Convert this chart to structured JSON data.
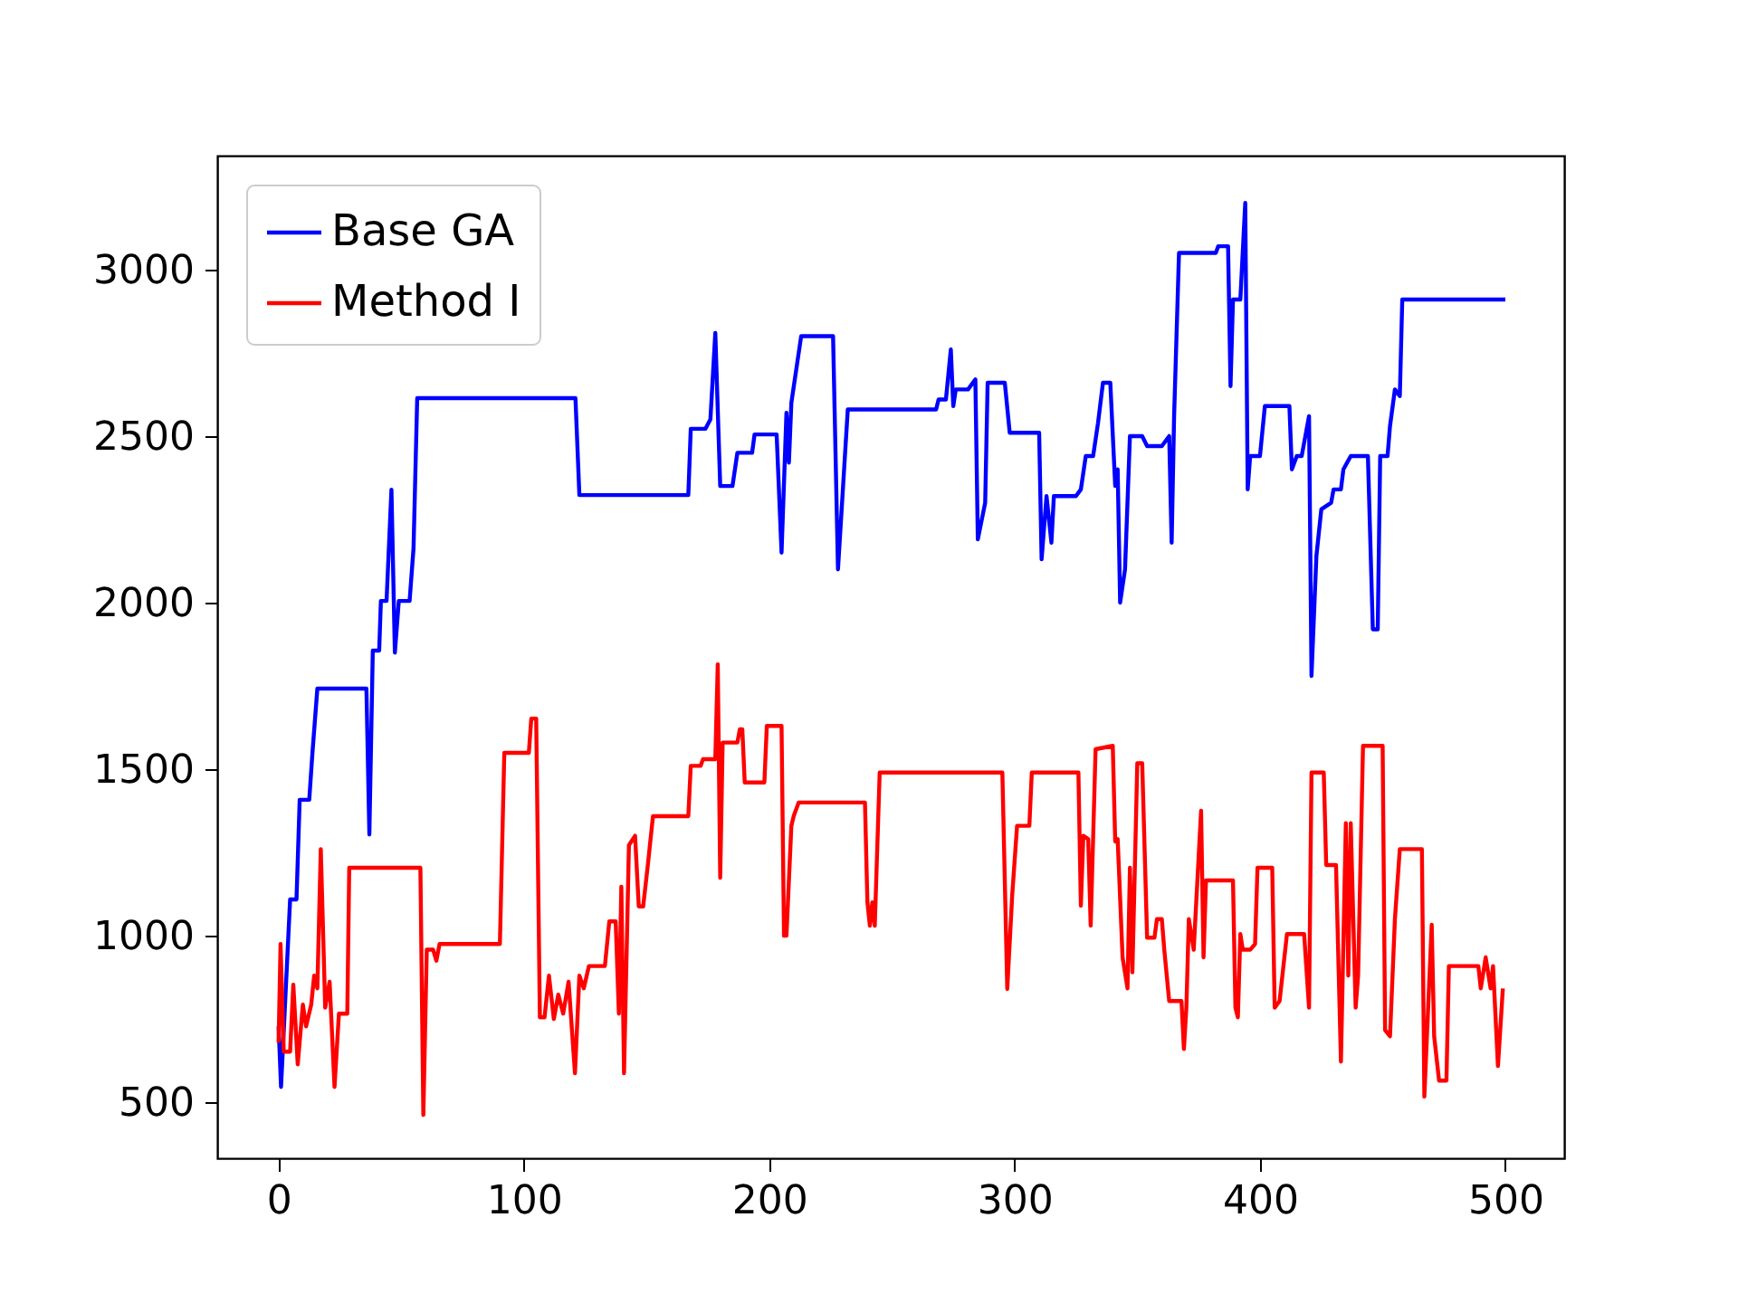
{
  "chart_data": {
    "type": "line",
    "xlim": [
      -25,
      524
    ],
    "ylim": [
      332,
      3342
    ],
    "xticks": [
      0,
      100,
      200,
      300,
      400,
      500
    ],
    "yticks": [
      500,
      1000,
      1500,
      2000,
      2500,
      3000
    ],
    "grid": false,
    "legend": "top left",
    "marker": "none",
    "line_style": "solid",
    "series": [
      {
        "name": "Base GA",
        "color": "#0000ff",
        "x": [
          0,
          1,
          4.7,
          7.3,
          8.6,
          12.5,
          13.8,
          15.8,
          35.8,
          37,
          38.4,
          41,
          41.7,
          44,
          46,
          47.4,
          49,
          53.4,
          55,
          56.5,
          121,
          122.6,
          167,
          168,
          174,
          176,
          178,
          180,
          185,
          187,
          193,
          194,
          203,
          205,
          207,
          208,
          209,
          213,
          226,
          228,
          230,
          232,
          268,
          269,
          272,
          274,
          275,
          276,
          281,
          284,
          285,
          288,
          289,
          296,
          298,
          310,
          311,
          313,
          315,
          316,
          325,
          327,
          329,
          332,
          334,
          336,
          339,
          341,
          342,
          343,
          345,
          347,
          352,
          354,
          360,
          363,
          364,
          365,
          367,
          382,
          383,
          387,
          388,
          389,
          392,
          394,
          395,
          396,
          400,
          402,
          412,
          413,
          415,
          417,
          420,
          421,
          423,
          425,
          429,
          430,
          433,
          434,
          437,
          444,
          446,
          448,
          449,
          452,
          453,
          455,
          457,
          458,
          500
        ],
        "values": [
          728,
          546,
          1109,
          1109,
          1408,
          1408,
          1549,
          1742,
          1742,
          1304,
          1856,
          1856,
          2005,
          2005,
          2339,
          1850,
          2005,
          2005,
          2163,
          2614,
          2614,
          2323,
          2323,
          2522,
          2522,
          2550,
          2810,
          2350,
          2350,
          2450,
          2450,
          2505,
          2505,
          2150,
          2570,
          2420,
          2600,
          2800,
          2800,
          2100,
          2340,
          2580,
          2580,
          2610,
          2610,
          2760,
          2590,
          2640,
          2640,
          2670,
          2190,
          2300,
          2660,
          2660,
          2510,
          2510,
          2130,
          2320,
          2180,
          2320,
          2320,
          2340,
          2440,
          2440,
          2540,
          2660,
          2660,
          2350,
          2400,
          2000,
          2100,
          2500,
          2500,
          2470,
          2470,
          2500,
          2180,
          2560,
          3050,
          3050,
          3070,
          3070,
          2650,
          2910,
          2910,
          3200,
          2340,
          2440,
          2440,
          2590,
          2590,
          2400,
          2440,
          2440,
          2560,
          1780,
          2140,
          2280,
          2300,
          2340,
          2340,
          2400,
          2440,
          2440,
          1920,
          1920,
          2440,
          2440,
          2530,
          2640,
          2620,
          2910,
          2910
        ]
      },
      {
        "name": "Method I",
        "color": "#ff0000",
        "x": [
          0,
          0.8,
          2.1,
          4.7,
          6,
          7.8,
          9.9,
          11.2,
          13.3,
          14.5,
          15.8,
          17.2,
          19,
          20.8,
          22.8,
          24.6,
          28,
          28.8,
          57.8,
          59,
          60.4,
          63,
          64.3,
          65.6,
          90.2,
          92,
          102,
          103,
          105,
          106.5,
          108.4,
          110.2,
          112.2,
          114,
          116,
          118.2,
          120.8,
          122.6,
          124.4,
          126.5,
          133,
          134.8,
          137.4,
          138.7,
          139.7,
          140.8,
          142.8,
          145.3,
          146.8,
          148.6,
          150.5,
          152.6,
          167,
          168,
          172,
          173,
          178,
          179,
          180,
          181,
          187,
          188,
          189,
          190,
          198,
          199,
          205,
          206,
          207,
          209,
          210,
          212,
          239,
          240,
          241,
          242,
          243,
          245,
          295,
          297,
          299,
          301,
          306,
          307,
          326,
          327,
          328,
          330,
          331,
          333,
          340,
          341,
          342,
          344,
          346,
          347,
          348,
          350,
          352,
          354,
          357,
          358,
          360,
          361,
          363,
          368,
          369,
          370,
          371,
          373,
          376,
          377,
          378,
          389,
          390,
          391,
          392,
          393,
          396,
          398,
          399,
          405,
          406,
          408,
          411,
          418,
          420,
          421,
          426,
          427,
          431,
          433,
          435,
          436,
          437,
          439,
          440,
          442,
          450,
          451,
          453,
          455,
          457,
          466,
          467,
          470,
          471,
          473,
          476,
          477,
          489,
          490,
          492,
          494,
          495,
          497,
          499
        ],
        "values": [
          679,
          975,
          652,
          652,
          853,
          614,
          793,
          728,
          793,
          880,
          842,
          1260,
          784,
          862,
          546,
          766,
          766,
          1204,
          1204,
          462,
          958,
          958,
          925,
          975,
          975,
          1549,
          1549,
          1652,
          1652,
          755,
          755,
          880,
          750,
          823,
          766,
          862,
          587,
          880,
          842,
          909,
          909,
          1043,
          1043,
          766,
          1147,
          587,
          1272,
          1300,
          1088,
          1088,
          1212,
          1359,
          1359,
          1510,
          1510,
          1530,
          1530,
          1815,
          1174,
          1580,
          1580,
          1620,
          1620,
          1460,
          1460,
          1630,
          1630,
          1000,
          1000,
          1330,
          1360,
          1400,
          1400,
          1100,
          1030,
          1100,
          1030,
          1490,
          1490,
          840,
          1120,
          1330,
          1330,
          1490,
          1490,
          1090,
          1300,
          1290,
          1030,
          1560,
          1570,
          1283,
          1290,
          935,
          842,
          1204,
          890,
          1518,
          1518,
          994,
          994,
          1050,
          1050,
          958,
          804,
          804,
          660,
          784,
          1050,
          958,
          1375,
          935,
          1166,
          1166,
          784,
          755,
          1005,
          958,
          958,
          975,
          1204,
          1204,
          784,
          804,
          1005,
          1005,
          784,
          1490,
          1490,
          1212,
          1212,
          622,
          1338,
          880,
          1338,
          784,
          880,
          1570,
          1570,
          717,
          698,
          1050,
          1260,
          1260,
          517,
          1033,
          698,
          565,
          565,
          909,
          909,
          842,
          935,
          842,
          909,
          609,
          842
        ]
      }
    ]
  }
}
